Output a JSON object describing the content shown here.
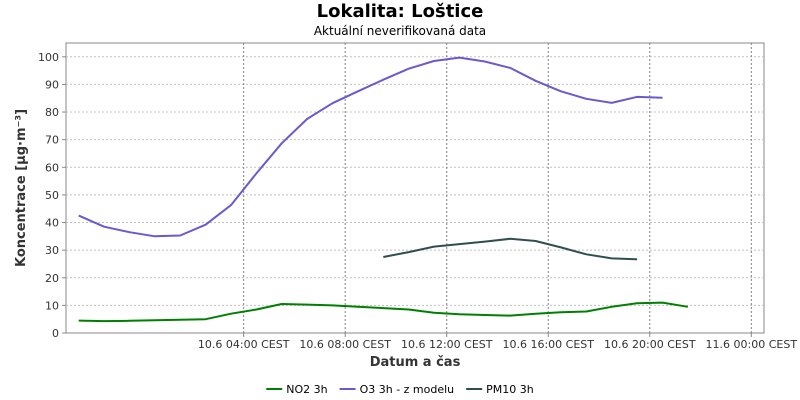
{
  "chart_data": {
    "type": "line",
    "title": "Lokalita: Loštice",
    "subtitle": "Aktuální neverifikovaná data",
    "xlabel": "Datum a čas",
    "ylabel": "Koncentrace [µg·m⁻³]",
    "ylim": [
      0,
      105
    ],
    "yticks": [
      0,
      10,
      20,
      30,
      40,
      50,
      60,
      70,
      80,
      90,
      100
    ],
    "x_unit": "hour (10.6 00:00 CEST = 0)",
    "xlim": [
      -3,
      24.5
    ],
    "xticks": [
      {
        "x": 4,
        "label": "10.6 04:00 CEST"
      },
      {
        "x": 8,
        "label": "10.6 08:00 CEST"
      },
      {
        "x": 12,
        "label": "10.6 12:00 CEST"
      },
      {
        "x": 16,
        "label": "10.6 16:00 CEST"
      },
      {
        "x": 20,
        "label": "10.6 20:00 CEST"
      },
      {
        "x": 24,
        "label": "11.6 00:00 CEST"
      }
    ],
    "grid": true,
    "legend_position": "bottom-center",
    "series": [
      {
        "name": "NO2 3h",
        "color": "#008000",
        "points": [
          [
            -2.5,
            4.5
          ],
          [
            -1.5,
            4.3
          ],
          [
            -0.5,
            4.4
          ],
          [
            0.5,
            4.6
          ],
          [
            1.5,
            4.8
          ],
          [
            2.5,
            5.0
          ],
          [
            3.5,
            7.0
          ],
          [
            4.5,
            8.5
          ],
          [
            5.5,
            10.5
          ],
          [
            6.5,
            10.3
          ],
          [
            7.5,
            10.0
          ],
          [
            8.5,
            9.5
          ],
          [
            9.5,
            9.0
          ],
          [
            10.5,
            8.5
          ],
          [
            11.5,
            7.3
          ],
          [
            12.5,
            6.8
          ],
          [
            13.5,
            6.5
          ],
          [
            14.5,
            6.3
          ],
          [
            15.5,
            7.0
          ],
          [
            16.5,
            7.5
          ],
          [
            17.5,
            7.8
          ],
          [
            18.5,
            9.5
          ],
          [
            19.5,
            10.8
          ],
          [
            20.5,
            11.0
          ],
          [
            21.5,
            9.5
          ]
        ]
      },
      {
        "name": "O3 3h - z modelu",
        "color": "#6a5acd",
        "points": [
          [
            -2.5,
            42.5
          ],
          [
            -1.5,
            38.5
          ],
          [
            -0.5,
            36.5
          ],
          [
            0.5,
            35.0
          ],
          [
            1.5,
            35.3
          ],
          [
            2.5,
            39.2
          ],
          [
            3.5,
            46.3
          ],
          [
            4.5,
            57.8
          ],
          [
            5.5,
            68.7
          ],
          [
            6.5,
            77.5
          ],
          [
            7.5,
            83.2
          ],
          [
            8.5,
            87.5
          ],
          [
            9.5,
            91.7
          ],
          [
            10.5,
            95.7
          ],
          [
            11.5,
            98.5
          ],
          [
            12.5,
            99.7
          ],
          [
            13.5,
            98.3
          ],
          [
            14.5,
            96.0
          ],
          [
            15.5,
            91.3
          ],
          [
            16.5,
            87.5
          ],
          [
            17.5,
            84.8
          ],
          [
            18.5,
            83.3
          ],
          [
            19.5,
            85.5
          ],
          [
            20.5,
            85.2
          ]
        ]
      },
      {
        "name": "PM10 3h",
        "color": "#2f4f4f",
        "points": [
          [
            9.5,
            27.5
          ],
          [
            10.5,
            29.3
          ],
          [
            11.5,
            31.3
          ],
          [
            12.5,
            32.2
          ],
          [
            13.5,
            33.1
          ],
          [
            14.5,
            34.1
          ],
          [
            15.5,
            33.3
          ],
          [
            16.5,
            31.0
          ],
          [
            17.5,
            28.5
          ],
          [
            18.5,
            27.0
          ],
          [
            19.5,
            26.7
          ]
        ]
      }
    ]
  }
}
